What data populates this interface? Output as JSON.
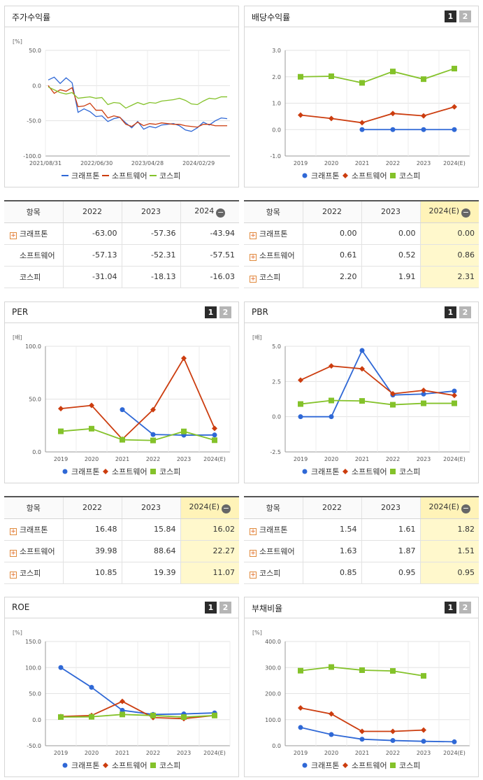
{
  "legend": [
    "크래프톤",
    "소프트웨어",
    "코스피"
  ],
  "colors": {
    "s0": "#2f68d6",
    "s1": "#cc3d0f",
    "s2": "#84c22a"
  },
  "pager": [
    "1",
    "2"
  ],
  "charts": {
    "stock": {
      "title": "주가수익률",
      "unit": "[%]"
    },
    "div": {
      "title": "배당수익률",
      "unit": ""
    },
    "per": {
      "title": "PER",
      "unit": "[배]"
    },
    "pbr": {
      "title": "PBR",
      "unit": "[배]"
    },
    "roe": {
      "title": "ROE",
      "unit": "[%]"
    },
    "debt": {
      "title": "부채비율",
      "unit": "[%]"
    }
  },
  "chart_data": [
    {
      "id": "stock",
      "type": "line",
      "title": "주가수익률",
      "ylim": [
        -100,
        50
      ],
      "yticks": [
        "50.0",
        "0.0",
        "-50.0",
        "-100.0"
      ],
      "xticks": [
        "2021/08/31",
        "2022/06/30",
        "2023/04/28",
        "2024/02/29"
      ],
      "xtick_pos": [
        0,
        0.277,
        0.553,
        0.83
      ],
      "series": [
        {
          "name": "크래프톤",
          "values": [
            8,
            12,
            3,
            11,
            4,
            -38,
            -33,
            -37,
            -44,
            -43,
            -51,
            -47,
            -45,
            -53,
            -60,
            -51,
            -62,
            -58,
            -60,
            -56,
            -55,
            -54,
            -57,
            -63,
            -65,
            -60,
            -52,
            -56,
            -50,
            -46,
            -47
          ]
        },
        {
          "name": "소프트웨어",
          "values": [
            0,
            -11,
            -6,
            -8,
            -3,
            -30,
            -29,
            -25,
            -35,
            -35,
            -46,
            -43,
            -45,
            -55,
            -58,
            -52,
            -57,
            -54,
            -55,
            -53,
            -54,
            -55,
            -55,
            -57,
            -58,
            -59,
            -55,
            -55,
            -57,
            -57,
            -57
          ]
        },
        {
          "name": "코스피",
          "values": [
            -2,
            -6,
            -10,
            -12,
            -10,
            -18,
            -17,
            -16,
            -18,
            -17,
            -27,
            -24,
            -25,
            -32,
            -28,
            -24,
            -27,
            -24,
            -25,
            -22,
            -21,
            -20,
            -18,
            -21,
            -26,
            -27,
            -22,
            -18,
            -19,
            -16,
            -16
          ]
        }
      ]
    },
    {
      "id": "div",
      "type": "line",
      "title": "배당수익률",
      "categories": [
        "2019",
        "2020",
        "2021",
        "2022",
        "2023",
        "2024(E)"
      ],
      "ylim": [
        -1,
        3
      ],
      "yticks": [
        "3.0",
        "2.0",
        "1.0",
        "0.0",
        "-1.0"
      ],
      "series": [
        {
          "name": "크래프톤",
          "values": [
            null,
            null,
            0.0,
            0.0,
            0.0,
            0.0
          ]
        },
        {
          "name": "소프트웨어",
          "values": [
            0.55,
            0.42,
            0.26,
            0.61,
            0.52,
            0.86
          ]
        },
        {
          "name": "코스피",
          "values": [
            2.0,
            2.02,
            1.77,
            2.2,
            1.91,
            2.31
          ]
        }
      ]
    },
    {
      "id": "per",
      "type": "line",
      "title": "PER",
      "categories": [
        "2019",
        "2020",
        "2021",
        "2022",
        "2023",
        "2024(E)"
      ],
      "ylim": [
        0,
        100
      ],
      "yticks": [
        "100.0",
        "50.0",
        "0.0"
      ],
      "series": [
        {
          "name": "크래프톤",
          "values": [
            null,
            null,
            40.0,
            16.48,
            15.84,
            16.02
          ]
        },
        {
          "name": "소프트웨어",
          "values": [
            41.0,
            44.0,
            12.0,
            39.98,
            88.64,
            22.27
          ]
        },
        {
          "name": "코스피",
          "values": [
            19.5,
            22.0,
            11.5,
            10.85,
            19.39,
            11.07
          ]
        }
      ]
    },
    {
      "id": "pbr",
      "type": "line",
      "title": "PBR",
      "categories": [
        "2019",
        "2020",
        "2021",
        "2022",
        "2023",
        "2024(E)"
      ],
      "ylim": [
        -2.5,
        5
      ],
      "yticks": [
        "5.0",
        "2.5",
        "0.0",
        "-2.5"
      ],
      "series": [
        {
          "name": "크래프톤",
          "values": [
            0.0,
            0.0,
            4.7,
            1.54,
            1.61,
            1.82
          ]
        },
        {
          "name": "소프트웨어",
          "values": [
            2.6,
            3.6,
            3.4,
            1.63,
            1.87,
            1.51
          ]
        },
        {
          "name": "코스피",
          "values": [
            0.9,
            1.15,
            1.12,
            0.85,
            0.95,
            0.95
          ]
        }
      ]
    },
    {
      "id": "roe",
      "type": "line",
      "title": "ROE",
      "categories": [
        "2019",
        "2020",
        "2021",
        "2022",
        "2023",
        "2024(E)"
      ],
      "ylim": [
        -50,
        150
      ],
      "yticks": [
        "150.0",
        "100.0",
        "50.0",
        "0.0",
        "-50.0"
      ],
      "series": [
        {
          "name": "크래프톤",
          "values": [
            100.0,
            62.0,
            18.0,
            10.0,
            11.0,
            13.0
          ]
        },
        {
          "name": "소프트웨어",
          "values": [
            6.0,
            8.0,
            35.0,
            4.0,
            2.0,
            8.0
          ]
        },
        {
          "name": "코스피",
          "values": [
            5.0,
            5.5,
            10.0,
            8.0,
            5.0,
            8.0
          ]
        }
      ]
    },
    {
      "id": "debt",
      "type": "line",
      "title": "부채비율",
      "categories": [
        "2019",
        "2020",
        "2021",
        "2022",
        "2023",
        "2024(E)"
      ],
      "ylim": [
        0,
        400
      ],
      "yticks": [
        "400.0",
        "300.0",
        "200.0",
        "100.0",
        "0.0"
      ],
      "series": [
        {
          "name": "크래프톤",
          "values": [
            70.0,
            43.0,
            25.0,
            20.0,
            17.0,
            15.0
          ]
        },
        {
          "name": "소프트웨어",
          "values": [
            145.0,
            122.0,
            55.0,
            55.0,
            60.0,
            null
          ]
        },
        {
          "name": "코스피",
          "values": [
            288.0,
            302.0,
            290.0,
            287.0,
            268.0,
            null
          ]
        }
      ]
    }
  ],
  "tables": {
    "stock": {
      "headers": [
        "항목",
        "2022",
        "2023",
        "2024"
      ],
      "highlight": false,
      "rows": [
        {
          "label": "크래프톤",
          "plus": true,
          "values": [
            "-63.00",
            "-57.36",
            "-43.94"
          ]
        },
        {
          "label": "소프트웨어",
          "plus": false,
          "values": [
            "-57.13",
            "-52.31",
            "-57.51"
          ]
        },
        {
          "label": "코스피",
          "plus": false,
          "values": [
            "-31.04",
            "-18.13",
            "-16.03"
          ]
        }
      ]
    },
    "div": {
      "headers": [
        "항목",
        "2022",
        "2023",
        "2024(E)"
      ],
      "highlight": true,
      "rows": [
        {
          "label": "크래프톤",
          "plus": true,
          "values": [
            "0.00",
            "0.00",
            "0.00"
          ]
        },
        {
          "label": "소프트웨어",
          "plus": true,
          "values": [
            "0.61",
            "0.52",
            "0.86"
          ]
        },
        {
          "label": "코스피",
          "plus": true,
          "values": [
            "2.20",
            "1.91",
            "2.31"
          ]
        }
      ]
    },
    "per": {
      "headers": [
        "항목",
        "2022",
        "2023",
        "2024(E)"
      ],
      "highlight": true,
      "rows": [
        {
          "label": "크래프톤",
          "plus": true,
          "values": [
            "16.48",
            "15.84",
            "16.02"
          ]
        },
        {
          "label": "소프트웨어",
          "plus": true,
          "values": [
            "39.98",
            "88.64",
            "22.27"
          ]
        },
        {
          "label": "코스피",
          "plus": true,
          "values": [
            "10.85",
            "19.39",
            "11.07"
          ]
        }
      ]
    },
    "pbr": {
      "headers": [
        "항목",
        "2022",
        "2023",
        "2024(E)"
      ],
      "highlight": true,
      "rows": [
        {
          "label": "크래프톤",
          "plus": true,
          "values": [
            "1.54",
            "1.61",
            "1.82"
          ]
        },
        {
          "label": "소프트웨어",
          "plus": true,
          "values": [
            "1.63",
            "1.87",
            "1.51"
          ]
        },
        {
          "label": "코스피",
          "plus": true,
          "values": [
            "0.85",
            "0.95",
            "0.95"
          ]
        }
      ]
    }
  }
}
